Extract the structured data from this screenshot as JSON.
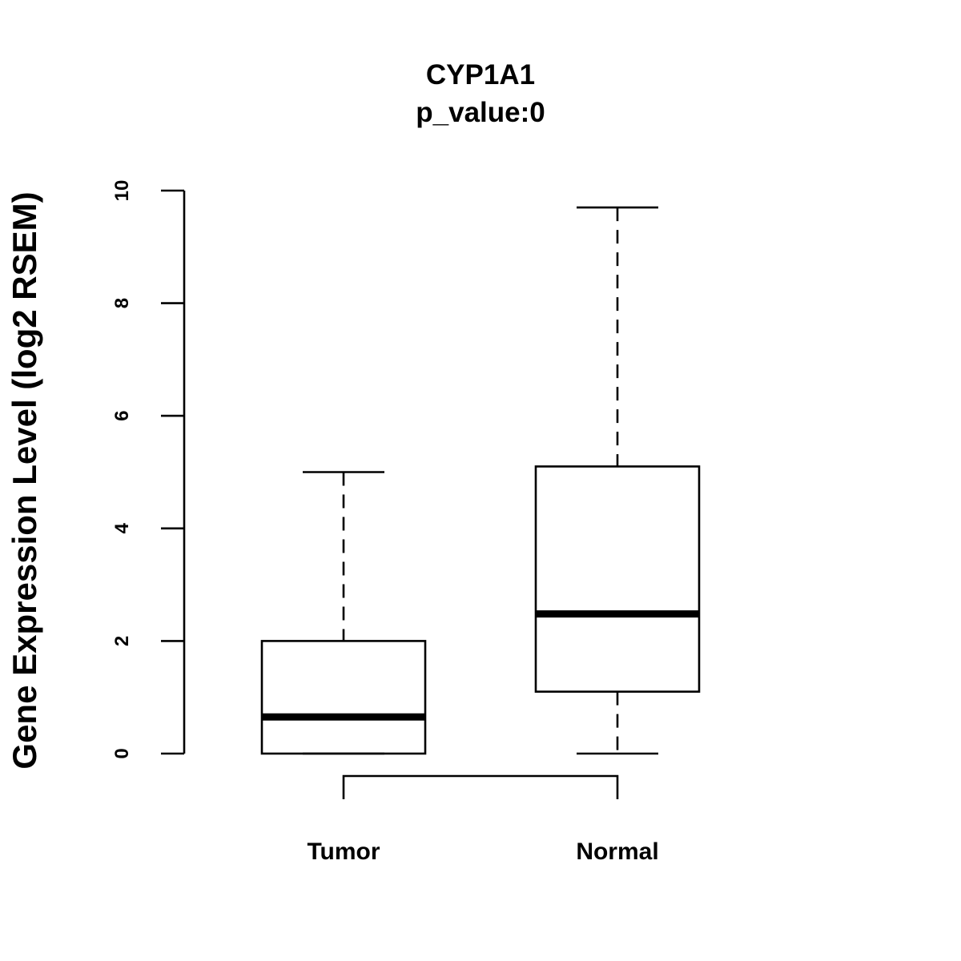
{
  "chart_data": {
    "type": "box",
    "title": "CYP1A1",
    "subtitle": "p_value:0",
    "xlabel": "",
    "ylabel": "Gene Expression Level (log2 RSEM)",
    "ylim": [
      0,
      10
    ],
    "yticks": [
      0,
      2,
      4,
      6,
      8,
      10
    ],
    "grid": false,
    "categories": [
      "Tumor",
      "Normal"
    ],
    "boxes": [
      {
        "name": "Tumor",
        "color": "#FBB1C3",
        "whisker_low": 0,
        "q1": 0,
        "median": 0.65,
        "q3": 2.0,
        "whisker_high": 5.0
      },
      {
        "name": "Normal",
        "color": "#77C1F8",
        "whisker_low": 0,
        "q1": 1.1,
        "median": 2.48,
        "q3": 5.1,
        "whisker_high": 9.7
      }
    ],
    "comparison_bracket": [
      "Tumor",
      "Normal"
    ]
  }
}
